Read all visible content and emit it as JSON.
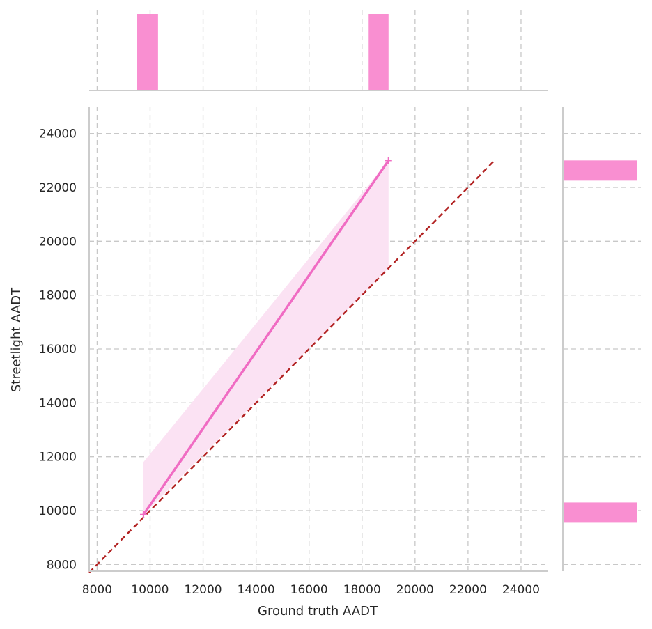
{
  "chart_data": {
    "type": "scatter",
    "title": "",
    "xlabel": "Ground truth AADT",
    "ylabel": "Streetlight AADT",
    "xlim": [
      7700,
      25000
    ],
    "ylim": [
      7750,
      25000
    ],
    "xticks": [
      8000,
      10000,
      12000,
      14000,
      16000,
      18000,
      20000,
      22000,
      24000
    ],
    "yticks": [
      8000,
      10000,
      12000,
      14000,
      16000,
      18000,
      20000,
      22000,
      24000
    ],
    "x_tick_labels": [
      "8000",
      "10000",
      "12000",
      "14000",
      "16000",
      "18000",
      "20000",
      "22000",
      "24000"
    ],
    "y_tick_labels": [
      "8000",
      "10000",
      "12000",
      "14000",
      "16000",
      "18000",
      "20000",
      "22000",
      "24000"
    ],
    "grid": true,
    "points": [
      {
        "x": 9750,
        "y": 9850
      },
      {
        "x": 19000,
        "y": 23000
      }
    ],
    "regression_line": {
      "x": [
        9750,
        19000
      ],
      "y": [
        9850,
        23000
      ]
    },
    "confidence_band": {
      "x": [
        9750,
        19000
      ],
      "upper": [
        11800,
        23000
      ],
      "lower": [
        9850,
        19000
      ]
    },
    "reference_line": {
      "x": [
        7700,
        23000
      ],
      "y": [
        7700,
        23000
      ]
    },
    "marginal_x": {
      "bins": [
        [
          9500,
          10300
        ],
        [
          18250,
          19000
        ]
      ],
      "counts": [
        1,
        1
      ]
    },
    "marginal_y": {
      "bins": [
        [
          9550,
          10300
        ],
        [
          22250,
          23000
        ]
      ],
      "counts": [
        1,
        1
      ]
    },
    "colors": {
      "points": "#f06cc3",
      "band": "#fbe2f3",
      "histogram": "#f98fd1",
      "reference": "#b22222",
      "grid": "#c8c8c8",
      "spine": "#cccccc"
    }
  }
}
